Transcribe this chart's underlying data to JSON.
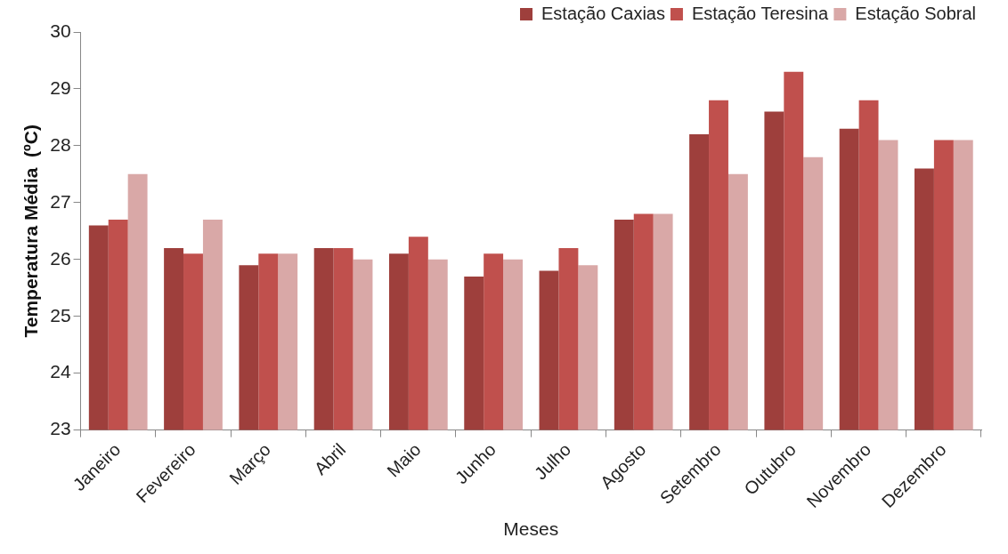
{
  "chart_data": {
    "type": "bar",
    "xlabel": "Meses",
    "ylabel": "Temperatura Média  (ºC)",
    "categories": [
      "Janeiro",
      "Fevereiro",
      "Março",
      "Abril",
      "Maio",
      "Junho",
      "Julho",
      "Agosto",
      "Setembro",
      "Outubro",
      "Novembro",
      "Dezembro"
    ],
    "series": [
      {
        "name": "Estação Caxias",
        "color": "#9e3f3c",
        "values": [
          26.6,
          26.2,
          25.9,
          26.2,
          26.1,
          25.7,
          25.8,
          26.7,
          28.2,
          28.6,
          28.3,
          27.6
        ]
      },
      {
        "name": "Estação Teresina",
        "color": "#c0504d",
        "values": [
          26.7,
          26.1,
          26.1,
          26.2,
          26.4,
          26.1,
          26.2,
          26.8,
          28.8,
          29.3,
          28.8,
          28.1
        ]
      },
      {
        "name": "Estação Sobral",
        "color": "#d9a8a7",
        "values": [
          27.5,
          26.7,
          26.1,
          26.0,
          26.0,
          26.0,
          25.9,
          26.8,
          27.5,
          27.8,
          28.1,
          28.1
        ]
      }
    ],
    "ylim": [
      23,
      30
    ],
    "yticks": [
      23,
      24,
      25,
      26,
      27,
      28,
      29,
      30
    ],
    "legend": "top right"
  }
}
